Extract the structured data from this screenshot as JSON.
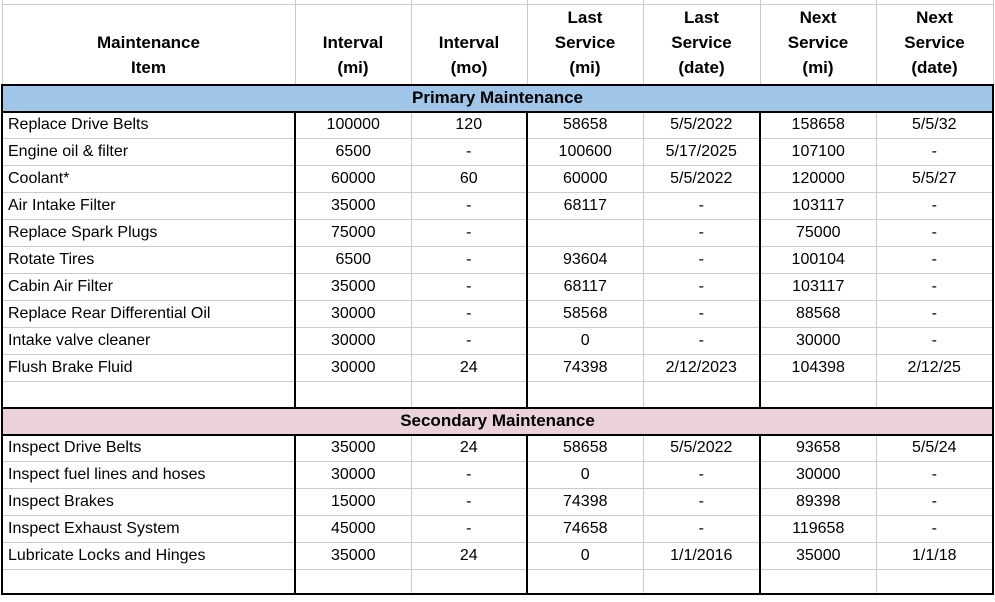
{
  "colors": {
    "primary_band_bg": "#9FC5E8",
    "secondary_band_bg": "#EAD1DC",
    "grid_gray": "#CBCBCB",
    "border_black": "#000000"
  },
  "header": {
    "columns": [
      "Maintenance\nItem",
      "Interval\n(mi)",
      "Interval\n(mo)",
      "Last\nService\n(mi)",
      "Last\nService\n(date)",
      "Next\nService\n(mi)",
      "Next\nService\n(date)"
    ]
  },
  "sections": [
    {
      "title": "Primary Maintenance",
      "rows": [
        [
          "Replace Drive Belts",
          "100000",
          "120",
          "58658",
          "5/5/2022",
          "158658",
          "5/5/32"
        ],
        [
          "Engine oil & filter",
          "6500",
          "-",
          "100600",
          "5/17/2025",
          "107100",
          "-"
        ],
        [
          "Coolant*",
          "60000",
          "60",
          "60000",
          "5/5/2022",
          "120000",
          "5/5/27"
        ],
        [
          "Air Intake Filter",
          "35000",
          "-",
          "68117",
          "-",
          "103117",
          "-"
        ],
        [
          "Replace Spark Plugs",
          "75000",
          "-",
          "",
          "-",
          "75000",
          "-"
        ],
        [
          "Rotate Tires",
          "6500",
          "-",
          "93604",
          "-",
          "100104",
          "-"
        ],
        [
          "Cabin Air Filter",
          "35000",
          "-",
          "68117",
          "-",
          "103117",
          "-"
        ],
        [
          "Replace Rear Differential Oil",
          "30000",
          "-",
          "58568",
          "-",
          "88568",
          "-"
        ],
        [
          "Intake valve cleaner",
          "30000",
          "-",
          "0",
          "-",
          "30000",
          "-"
        ],
        [
          "Flush Brake Fluid",
          "30000",
          "24",
          "74398",
          "2/12/2023",
          "104398",
          "2/12/25"
        ],
        [
          "",
          "",
          "",
          "",
          "",
          "",
          ""
        ]
      ]
    },
    {
      "title": "Secondary Maintenance",
      "rows": [
        [
          "Inspect Drive Belts",
          "35000",
          "24",
          "58658",
          "5/5/2022",
          "93658",
          "5/5/24"
        ],
        [
          "Inspect fuel lines and hoses",
          "30000",
          "-",
          "0",
          "-",
          "30000",
          "-"
        ],
        [
          "Inspect Brakes",
          "15000",
          "-",
          "74398",
          "-",
          "89398",
          "-"
        ],
        [
          "Inspect Exhaust System",
          "45000",
          "-",
          "74658",
          "-",
          "119658",
          "-"
        ],
        [
          "Lubricate Locks and Hinges",
          "35000",
          "24",
          "0",
          "1/1/2016",
          "35000",
          "1/1/18"
        ],
        [
          "",
          "",
          "",
          "",
          "",
          "",
          ""
        ]
      ]
    }
  ]
}
